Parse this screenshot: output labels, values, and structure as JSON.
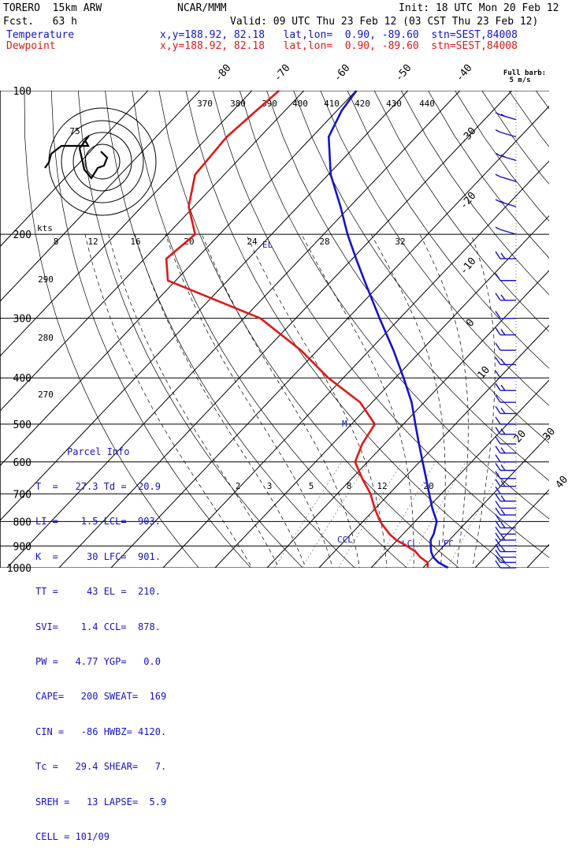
{
  "header": {
    "model": "TORERO  15km ARW",
    "org": "NCAR/MMM",
    "init": "Init: 18 UTC Mon 20 Feb 12",
    "fcst": "Fcst.   63 h",
    "valid": "Valid: 09 UTC Thu 23 Feb 12 (03 CST Thu 23 Feb 12)",
    "temp_label": "Temperature",
    "dew_label": "Dewpoint",
    "temp_loc": "x,y=188.92, 82.18   lat,lon=  0.90, -89.60  stn=SEST,84008",
    "dew_loc": "x,y=188.92, 82.18   lat,lon=  0.90, -89.60  stn=SEST,84008"
  },
  "barb_legend": {
    "line1": "Full barb:",
    "line2": "5 m/s"
  },
  "hodograph": {
    "units": "kts",
    "ring_labels": [
      "8",
      "12",
      "16",
      "20",
      "24",
      "28",
      "32"
    ],
    "note": "75"
  },
  "parcel_info": {
    "title": "Parcel Info",
    "rows": [
      "T  =   27.3 Td =  20.9",
      "LI =   -1.5 LCL=  903.",
      "K  =     30 LFC=  901.",
      "TT =     43 EL =  210.",
      "SVI=    1.4 CCL=  878.",
      "PW =   4.77 YGP=   0.0",
      "CAPE=   200 SWEAT=  169",
      "CIN =   -86 HWBZ= 4120.",
      "Tc =   29.4 SHEAR=   7.",
      "SREH =   13 LAPSE=  5.9",
      "CELL = 101/09"
    ]
  },
  "chart_data": {
    "type": "line",
    "title": "",
    "pressure_levels": [
      100,
      200,
      300,
      400,
      500,
      600,
      700,
      800,
      900,
      1000
    ],
    "isotherm_labels": [
      "-80",
      "-70",
      "-60",
      "-50",
      "-40",
      "-30",
      "-20",
      "-10",
      "0",
      "10",
      "20",
      "30",
      "40"
    ],
    "theta_e_labels": [
      "370",
      "380",
      "390",
      "400",
      "410",
      "420",
      "430",
      "440"
    ],
    "theta_labels": [
      "290",
      "280",
      "270"
    ],
    "mixing_ratio_labels": [
      "2",
      "3",
      "5",
      "8",
      "12",
      "20"
    ],
    "markers": {
      "el": "EL",
      "m": "M",
      "ccl": "CCL",
      "lcl": "LCL",
      "lfc": "LFC"
    },
    "colors": {
      "temperature": "#1414c8",
      "dewpoint": "#e01818"
    },
    "series": [
      {
        "name": "Temperature",
        "p": [
          1000,
          975,
          950,
          925,
          900,
          875,
          850,
          800,
          750,
          700,
          650,
          600,
          550,
          500,
          450,
          400,
          350,
          300,
          250,
          225,
          200,
          175,
          150,
          125,
          110,
          100
        ],
        "t": [
          24.8,
          22,
          20,
          18.6,
          17.5,
          16.4,
          15.9,
          14.2,
          10.9,
          7.7,
          4.3,
          0.6,
          -3.4,
          -7.7,
          -12.4,
          -18.4,
          -25.4,
          -33.9,
          -43.7,
          -49.3,
          -55.4,
          -61.8,
          -69.5,
          -76.8,
          -79.1,
          -79.9
        ]
      },
      {
        "name": "Dewpoint",
        "p": [
          1000,
          975,
          950,
          925,
          900,
          875,
          850,
          800,
          750,
          700,
          650,
          600,
          550,
          500,
          450,
          400,
          350,
          300,
          250,
          225,
          200,
          175,
          150,
          125,
          110,
          100
        ],
        "t": [
          20.9,
          19.9,
          17.5,
          15.6,
          12.9,
          9.8,
          7.4,
          3.3,
          -0.2,
          -3.6,
          -8,
          -12.4,
          -14.3,
          -15.5,
          -22.3,
          -32.9,
          -43.2,
          -56.8,
          -81.5,
          -85.8,
          -84.7,
          -91,
          -95.6,
          -96.4,
          -95.5,
          -94.8
        ]
      }
    ]
  }
}
